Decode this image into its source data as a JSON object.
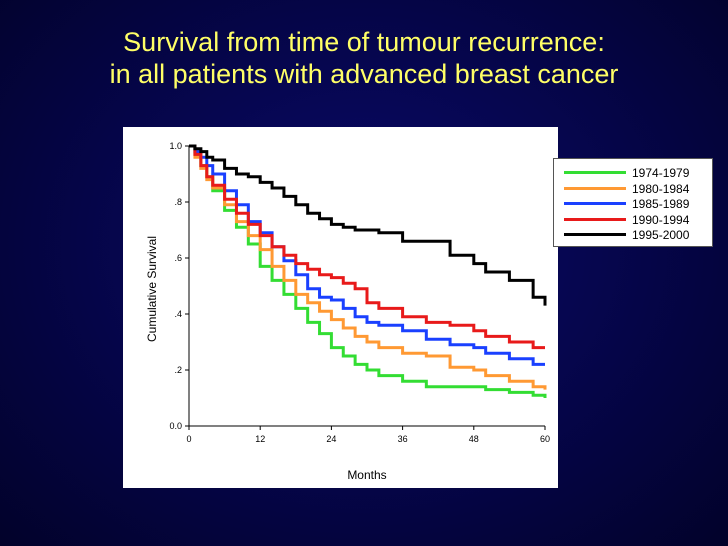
{
  "title_line1": "Survival from time of tumour recurrence:",
  "title_line2": "in all patients with advanced breast cancer",
  "chart_data": {
    "type": "line",
    "xlabel": "Months",
    "ylabel": "Cumulative Survival",
    "xlim": [
      0,
      60
    ],
    "ylim": [
      0,
      1
    ],
    "x_ticks": [
      "0",
      "12",
      "24",
      "36",
      "48",
      "60"
    ],
    "y_ticks": [
      "0.0",
      ".2",
      ".4",
      ".6",
      ".8",
      "1.0"
    ],
    "legend_position": "top-right",
    "series": [
      {
        "name": "1974-1979",
        "color": "#33dd33",
        "x": [
          0,
          1,
          2,
          3,
          4,
          6,
          8,
          10,
          12,
          14,
          16,
          18,
          20,
          22,
          24,
          26,
          28,
          30,
          32,
          36,
          40,
          44,
          48,
          50,
          54,
          58,
          60
        ],
        "y": [
          1.0,
          0.97,
          0.93,
          0.89,
          0.84,
          0.77,
          0.71,
          0.65,
          0.57,
          0.52,
          0.47,
          0.42,
          0.37,
          0.33,
          0.28,
          0.25,
          0.22,
          0.2,
          0.18,
          0.16,
          0.14,
          0.14,
          0.14,
          0.13,
          0.12,
          0.11,
          0.1
        ]
      },
      {
        "name": "1980-1984",
        "color": "#ff9933",
        "x": [
          0,
          1,
          2,
          3,
          4,
          6,
          8,
          10,
          12,
          14,
          16,
          18,
          20,
          22,
          24,
          26,
          28,
          30,
          32,
          36,
          40,
          44,
          48,
          50,
          54,
          58,
          60
        ],
        "y": [
          1.0,
          0.96,
          0.92,
          0.88,
          0.85,
          0.79,
          0.73,
          0.68,
          0.63,
          0.57,
          0.52,
          0.47,
          0.44,
          0.41,
          0.38,
          0.35,
          0.32,
          0.3,
          0.28,
          0.26,
          0.25,
          0.21,
          0.2,
          0.18,
          0.16,
          0.14,
          0.13
        ]
      },
      {
        "name": "1985-1989",
        "color": "#1a40ff",
        "x": [
          0,
          1,
          2,
          3,
          4,
          6,
          8,
          10,
          12,
          14,
          16,
          18,
          20,
          22,
          24,
          26,
          28,
          30,
          32,
          36,
          40,
          44,
          48,
          50,
          54,
          58,
          60
        ],
        "y": [
          1.0,
          0.98,
          0.96,
          0.93,
          0.9,
          0.84,
          0.79,
          0.73,
          0.69,
          0.64,
          0.59,
          0.54,
          0.49,
          0.46,
          0.45,
          0.42,
          0.39,
          0.37,
          0.36,
          0.34,
          0.31,
          0.29,
          0.28,
          0.26,
          0.24,
          0.22,
          0.22
        ]
      },
      {
        "name": "1990-1994",
        "color": "#e81a1a",
        "x": [
          0,
          1,
          2,
          3,
          4,
          6,
          8,
          10,
          12,
          14,
          16,
          18,
          20,
          22,
          24,
          26,
          28,
          30,
          32,
          36,
          40,
          44,
          48,
          50,
          54,
          58,
          60
        ],
        "y": [
          1.0,
          0.97,
          0.93,
          0.89,
          0.86,
          0.81,
          0.76,
          0.72,
          0.68,
          0.64,
          0.61,
          0.58,
          0.56,
          0.54,
          0.53,
          0.51,
          0.49,
          0.44,
          0.42,
          0.39,
          0.37,
          0.36,
          0.34,
          0.32,
          0.3,
          0.28,
          0.28
        ]
      },
      {
        "name": "1995-2000",
        "color": "#000000",
        "x": [
          0,
          1,
          2,
          3,
          4,
          6,
          8,
          10,
          12,
          14,
          16,
          18,
          20,
          22,
          24,
          26,
          28,
          30,
          32,
          36,
          40,
          44,
          48,
          50,
          54,
          58,
          60
        ],
        "y": [
          1.0,
          0.99,
          0.98,
          0.96,
          0.95,
          0.92,
          0.9,
          0.89,
          0.87,
          0.85,
          0.82,
          0.79,
          0.76,
          0.74,
          0.72,
          0.71,
          0.7,
          0.7,
          0.69,
          0.66,
          0.66,
          0.61,
          0.58,
          0.55,
          0.52,
          0.46,
          0.43
        ]
      }
    ]
  }
}
